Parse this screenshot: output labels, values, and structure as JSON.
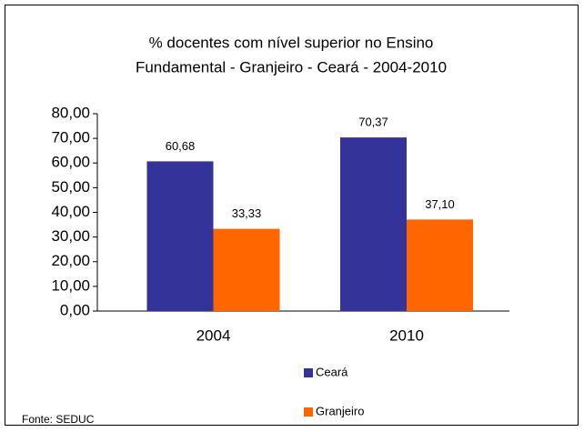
{
  "chart_data": {
    "type": "bar",
    "title": [
      "% docentes com nível  superior no Ensino",
      "Fundamental - Granjeiro -  Ceará - 2004-2010"
    ],
    "categories": [
      "2004",
      "2010"
    ],
    "series": [
      {
        "name": "Ceará",
        "color": "#333399",
        "values": [
          60.68,
          70.37
        ],
        "value_labels": [
          "60,68",
          "70,37"
        ]
      },
      {
        "name": "Granjeiro",
        "color": "#ff6600",
        "values": [
          33.33,
          37.1
        ],
        "value_labels": [
          "33,33",
          "37,10"
        ]
      }
    ],
    "ylim": [
      0,
      80
    ],
    "yticks": [
      {
        "value": 0,
        "label": "0,00"
      },
      {
        "value": 10,
        "label": "10,00"
      },
      {
        "value": 20,
        "label": "20,00"
      },
      {
        "value": 30,
        "label": "30,00"
      },
      {
        "value": 40,
        "label": "40,00"
      },
      {
        "value": 50,
        "label": "50,00"
      },
      {
        "value": 60,
        "label": "60,00"
      },
      {
        "value": 70,
        "label": "70,00"
      },
      {
        "value": 80,
        "label": "80,00"
      }
    ],
    "grid": false,
    "legend": "bottom",
    "source": "Fonte: SEDUC"
  }
}
